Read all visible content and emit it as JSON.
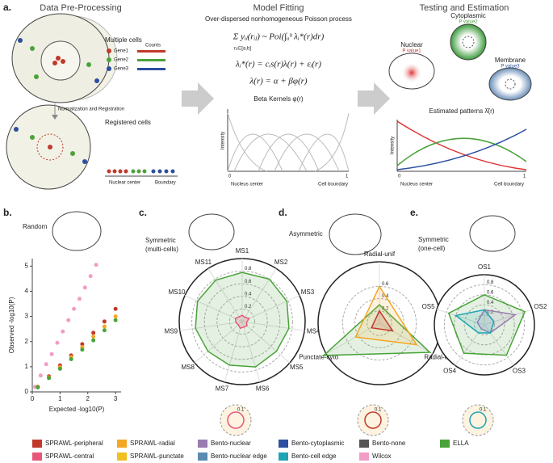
{
  "panel_a": {
    "label": "a.",
    "pre": {
      "title": "Data Pre-Processing",
      "multiple": "Multiple cells",
      "genes": [
        "Gene1",
        "Gene2",
        "Gene3"
      ],
      "counts": "Counts",
      "norm": "Normalization and Registration",
      "registered": "Registered cells",
      "nuclear_center": "Nuclear center",
      "boundary": "Boundary"
    },
    "model": {
      "title": "Model Fitting",
      "subtitle": "Over-dispersed nonhomogeneous Poisson process",
      "formulas": [
        "Σ yᵢⱼ(rᵢⱼ) ~ Poi(∫ₐᵇ λᵢ*(r)dr)",
        "λᵢ*(r) = cᵢs(r)λ(r) + εᵢ(r)",
        "λ(r) = α + βφ(r)"
      ],
      "sum_range": "rᵢⱼ∈[a,b]",
      "kernels": "Beta Kernels φ(r)",
      "ylabel": "Intensity",
      "start": "0",
      "end": "1",
      "left": "Nucleus center",
      "right": "Cell boundary"
    },
    "test": {
      "title": "Testing and Estimation",
      "cells": [
        {
          "name": "Nuclear",
          "p": "P value1"
        },
        {
          "name": "Cytoplasmic",
          "p": "P value2"
        },
        {
          "name": "Membrane",
          "p": "P value3"
        }
      ],
      "patterns": "Estimated patterns λ̂(r)",
      "ylabel": "Intensity",
      "start": "0",
      "end": "1",
      "left": "Nucleus center",
      "right": "Cell boundary"
    }
  },
  "panel_b": {
    "label": "b.",
    "title": "Random",
    "chart": {
      "type": "scatter",
      "xlabel": "Expected -log10(P)",
      "ylabel": "Observed -log10(P)",
      "xlim": [
        0,
        3.2
      ],
      "ylim": [
        0,
        5.3
      ],
      "xticks": [
        0,
        1,
        2,
        3
      ],
      "yticks": [
        0,
        1,
        2,
        3,
        4,
        5
      ],
      "series": [
        {
          "color": "#f29cc7",
          "x": [
            0.1,
            0.3,
            0.5,
            0.7,
            0.9,
            1.1,
            1.3,
            1.5,
            1.7,
            1.9,
            2.1,
            2.3
          ],
          "values": [
            0.2,
            0.65,
            1.1,
            1.5,
            1.95,
            2.4,
            2.85,
            3.3,
            3.7,
            4.15,
            4.6,
            5.05
          ]
        },
        {
          "color": "#c0392b",
          "x": [
            0.2,
            0.6,
            1,
            1.4,
            1.8,
            2.2,
            2.6,
            3
          ],
          "values": [
            0.2,
            0.62,
            1.05,
            1.45,
            1.9,
            2.35,
            2.8,
            3.3
          ]
        },
        {
          "color": "#f5a623",
          "x": [
            0.2,
            0.6,
            1,
            1.4,
            1.8,
            2.2,
            2.6,
            3
          ],
          "values": [
            0.19,
            0.58,
            0.98,
            1.38,
            1.78,
            2.2,
            2.6,
            3.0
          ]
        },
        {
          "color": "#4aa33a",
          "x": [
            0.2,
            0.6,
            1,
            1.4,
            1.8,
            2.2,
            2.6,
            3
          ],
          "values": [
            0.18,
            0.55,
            0.92,
            1.3,
            1.68,
            2.05,
            2.45,
            2.85
          ]
        }
      ]
    }
  },
  "panel_c": {
    "label": "c.",
    "title": [
      "Symmetric",
      "(multi-cells)"
    ],
    "type": "radar",
    "axes": [
      "MS1",
      "MS2",
      "MS3",
      "MS4",
      "MS5",
      "MS6",
      "MS7",
      "MS8",
      "MS9",
      "MS10",
      "MS11"
    ],
    "rlim": [
      0,
      1
    ],
    "rticks": [
      0.2,
      0.4,
      0.6,
      0.8
    ],
    "inset": "0.1",
    "series": [
      {
        "color": "#4aa33a",
        "values": [
          0.78,
          0.8,
          0.78,
          0.75,
          0.72,
          0.75,
          0.72,
          0.72,
          0.75,
          0.78,
          0.78
        ]
      },
      {
        "color": "#e8577a",
        "values": [
          0.1,
          0.08,
          0.12,
          0.07,
          0.1,
          0.09,
          0.11,
          0.08,
          0.1,
          0.12,
          0.09
        ]
      }
    ]
  },
  "panel_d": {
    "label": "d.",
    "title": [
      "Asymmetric"
    ],
    "type": "radar",
    "axes": [
      "Radial-unif",
      "Radial-cyto",
      "Punctate-cyto"
    ],
    "rlim": [
      0,
      1
    ],
    "rticks": [
      0.2,
      0.4,
      0.6
    ],
    "inset": "0.1",
    "series": [
      {
        "color": "#4aa33a",
        "values": [
          0.3,
          0.95,
          1.05
        ]
      },
      {
        "color": "#f5a623",
        "values": [
          0.6,
          0.7,
          0.45
        ]
      },
      {
        "color": "#c0392b",
        "values": [
          0.2,
          0.25,
          0.15
        ]
      }
    ]
  },
  "panel_e": {
    "label": "e.",
    "title": [
      "Symmetric",
      "(one-cell)"
    ],
    "type": "radar",
    "axes": [
      "OS1",
      "OS2",
      "OS3",
      "OS4",
      "OS5"
    ],
    "rlim": [
      0,
      1
    ],
    "rticks": [
      0.2,
      0.4,
      0.6,
      0.8
    ],
    "inset": "0.1",
    "series": [
      {
        "color": "#4aa33a",
        "values": [
          0.6,
          0.85,
          0.75,
          0.7,
          0.75
        ]
      },
      {
        "color": "#9b7bb0",
        "values": [
          0.3,
          0.65,
          0.2,
          0.1,
          0.15
        ]
      },
      {
        "color": "#1fa3b5",
        "values": [
          0.3,
          0.2,
          0.2,
          0.2,
          0.6
        ]
      }
    ]
  },
  "legend": [
    {
      "name": "SPRAWL-peripheral",
      "color": "#c0392b"
    },
    {
      "name": "SPRAWL-radial",
      "color": "#f5a623"
    },
    {
      "name": "Bento-nuclear",
      "color": "#9b7bb0"
    },
    {
      "name": "Bento-cytoplasmic",
      "color": "#2c4ea0"
    },
    {
      "name": "Bento-none",
      "color": "#555555"
    },
    {
      "name": "ELLA",
      "color": "#4aa33a"
    },
    {
      "name": "SPRAWL-central",
      "color": "#e8577a"
    },
    {
      "name": "SPRAWL-punctate",
      "color": "#f0c020"
    },
    {
      "name": "Bento-nuclear edge",
      "color": "#5b8bb0"
    },
    {
      "name": "Bento-cell edge",
      "color": "#1fa3b5"
    },
    {
      "name": "Wilcox",
      "color": "#f29cc7"
    }
  ]
}
